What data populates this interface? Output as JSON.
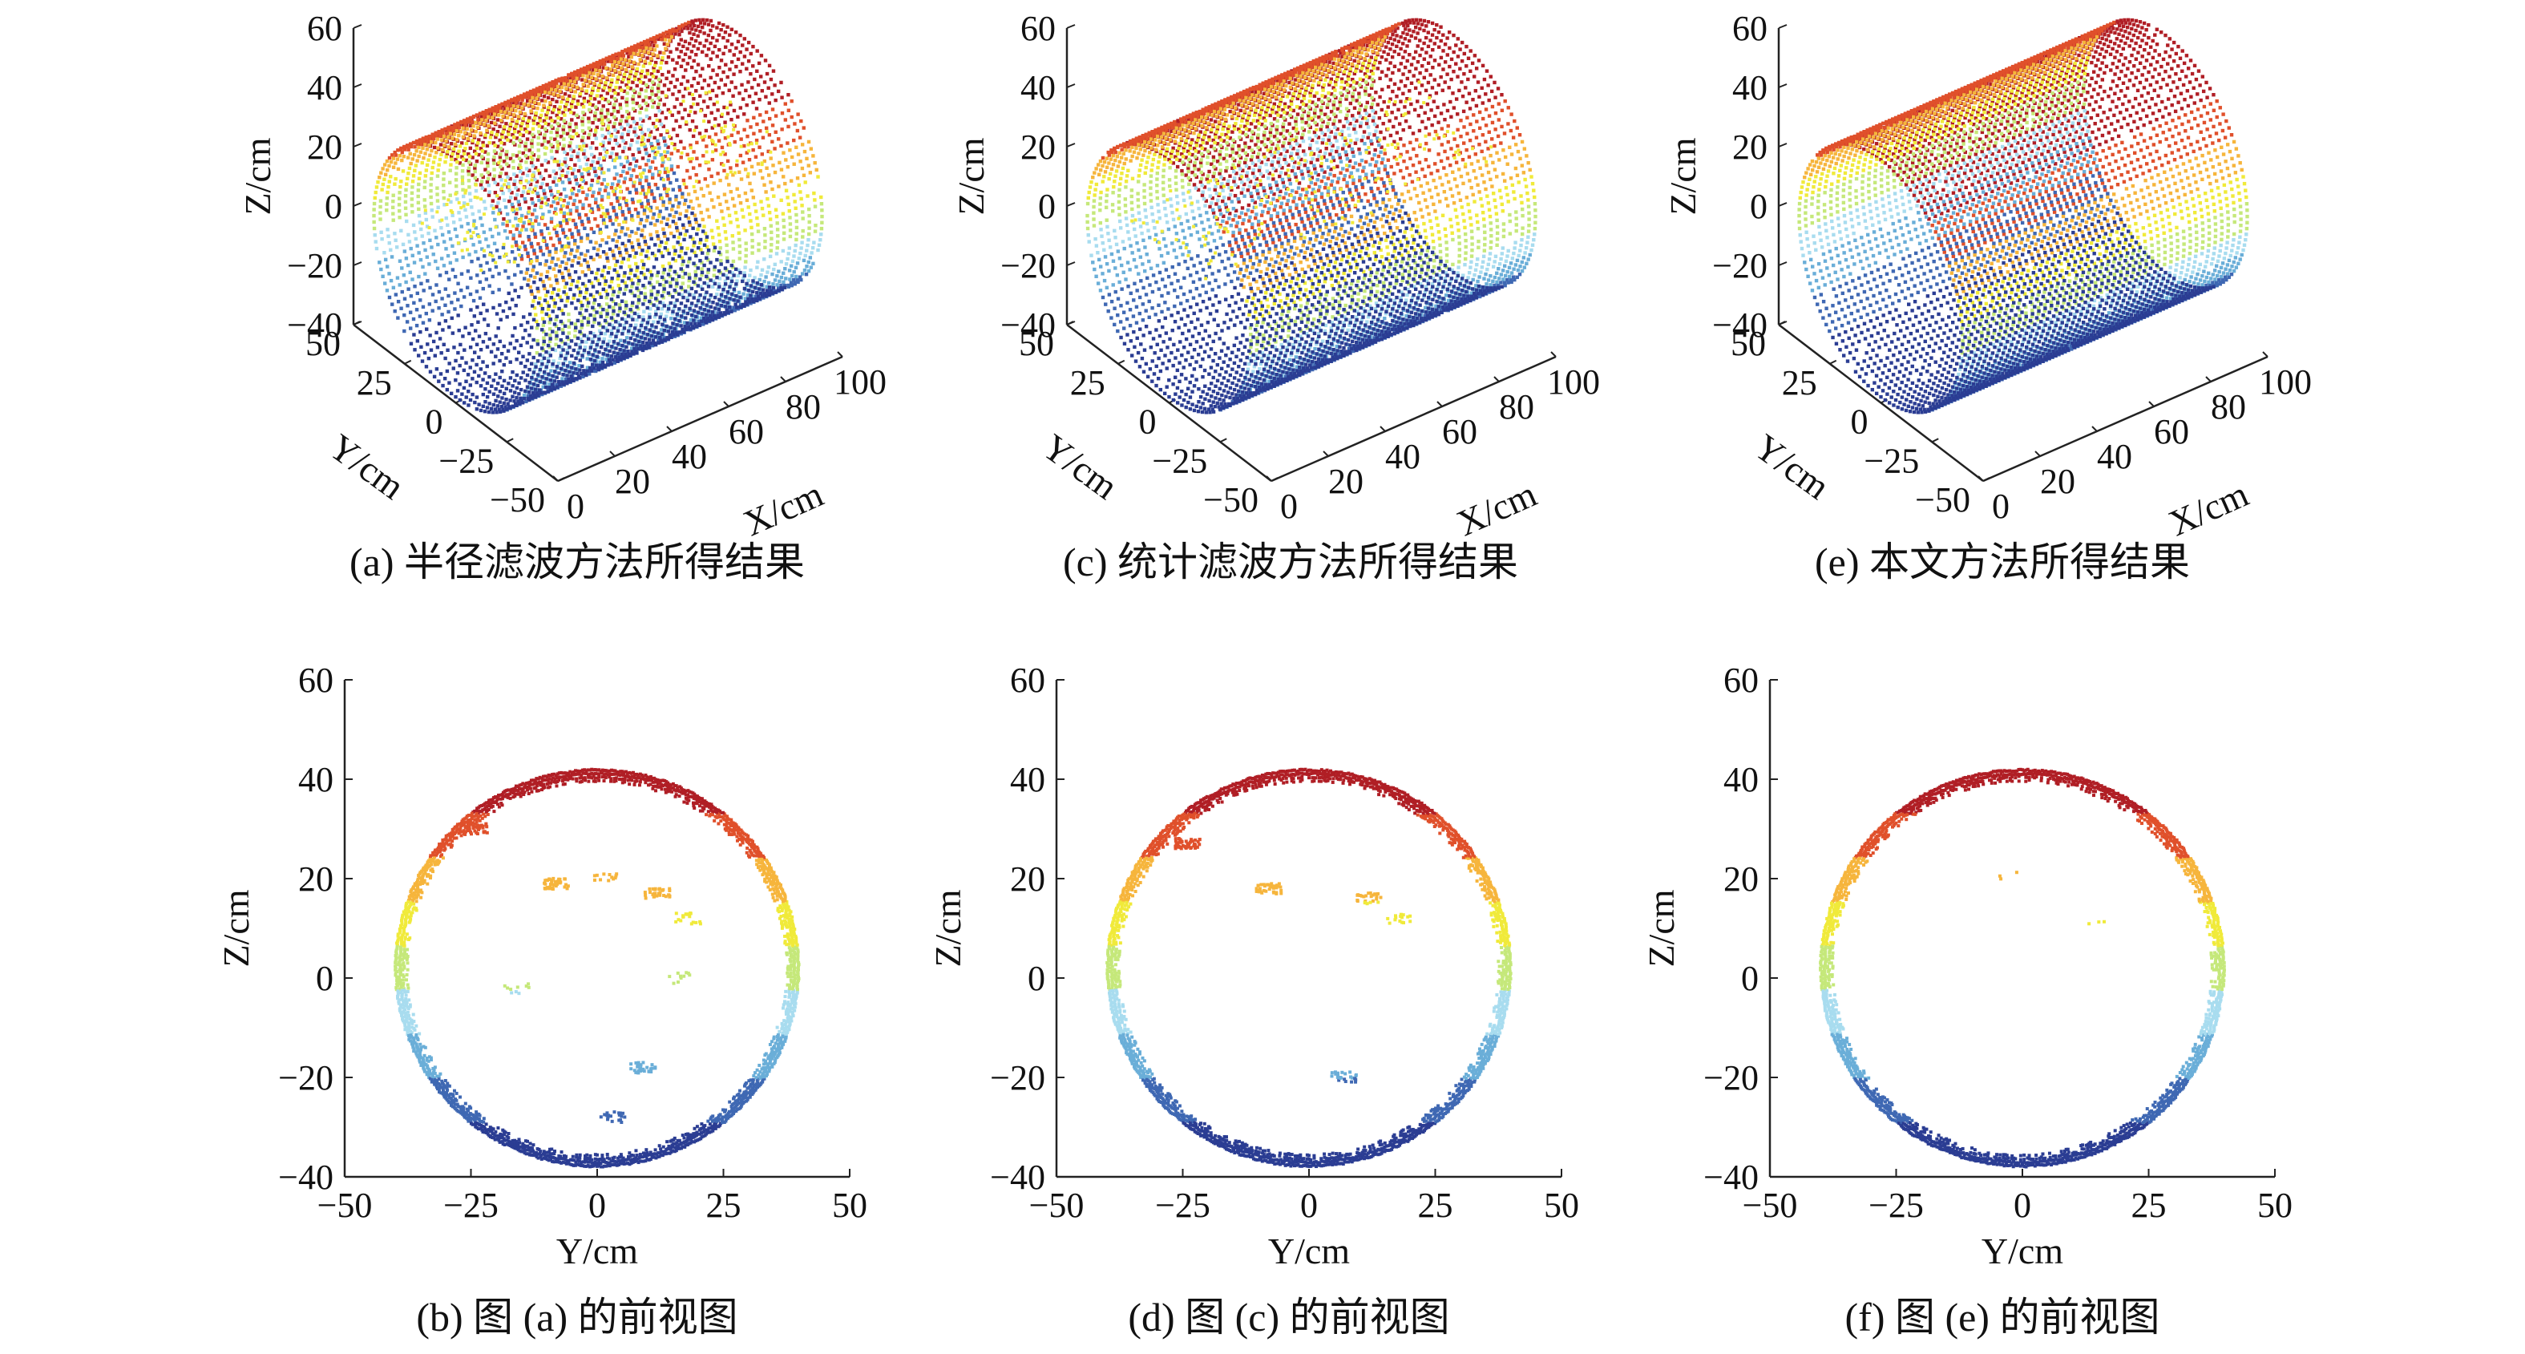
{
  "colors": {
    "colormap": [
      "#2b3d93",
      "#3f68b3",
      "#6aaed8",
      "#a8dcef",
      "#c5e87a",
      "#f0ea3a",
      "#f6b53c",
      "#e0502b",
      "#b01e25"
    ]
  },
  "chart_data": [
    {
      "id": "a",
      "type": "scatter3d",
      "caption": "(a) 半径滤波方法所得结果",
      "xlabel": "X/cm",
      "ylabel": "Y/cm",
      "zlabel": "Z/cm",
      "xticks": [
        "0",
        "20",
        "40",
        "60",
        "80",
        "100"
      ],
      "yticks": [
        "50",
        "25",
        "0",
        "−25",
        "−50"
      ],
      "zticks": [
        "60",
        "40",
        "20",
        "0",
        "−20",
        "−40"
      ],
      "xlim": [
        0,
        100
      ],
      "ylim": [
        -50,
        50
      ],
      "zlim": [
        -40,
        60
      ],
      "cylinder": {
        "radius": 40,
        "center_z": 2,
        "x_range": [
          0,
          100
        ]
      },
      "noise": "high"
    },
    {
      "id": "c",
      "type": "scatter3d",
      "caption": "(c) 统计滤波方法所得结果",
      "xlabel": "X/cm",
      "ylabel": "Y/cm",
      "zlabel": "Z/cm",
      "xticks": [
        "0",
        "20",
        "40",
        "60",
        "80",
        "100"
      ],
      "yticks": [
        "50",
        "25",
        "0",
        "−25",
        "−50"
      ],
      "zticks": [
        "60",
        "40",
        "20",
        "0",
        "−20",
        "−40"
      ],
      "xlim": [
        0,
        100
      ],
      "ylim": [
        -50,
        50
      ],
      "zlim": [
        -40,
        60
      ],
      "cylinder": {
        "radius": 40,
        "center_z": 2,
        "x_range": [
          0,
          100
        ]
      },
      "noise": "medium"
    },
    {
      "id": "e",
      "type": "scatter3d",
      "caption": "(e) 本文方法所得结果",
      "xlabel": "X/cm",
      "ylabel": "Y/cm",
      "zlabel": "Z/cm",
      "xticks": [
        "0",
        "20",
        "40",
        "60",
        "80",
        "100"
      ],
      "yticks": [
        "50",
        "25",
        "0",
        "−25",
        "−50"
      ],
      "zticks": [
        "60",
        "40",
        "20",
        "0",
        "−20",
        "−40"
      ],
      "xlim": [
        0,
        100
      ],
      "ylim": [
        -50,
        50
      ],
      "zlim": [
        -40,
        60
      ],
      "cylinder": {
        "radius": 40,
        "center_z": 2,
        "x_range": [
          0,
          100
        ]
      },
      "noise": "low"
    },
    {
      "id": "b",
      "type": "scatter",
      "caption": "(b) 图 (a) 的前视图",
      "xlabel": "Y/cm",
      "ylabel": "Z/cm",
      "xticks": [
        "−50",
        "−25",
        "0",
        "25",
        "50"
      ],
      "yticks": [
        "60",
        "40",
        "20",
        "0",
        "−20",
        "−40"
      ],
      "xlim": [
        -50,
        50
      ],
      "ylim": [
        -40,
        60
      ],
      "circle": {
        "center": [
          0,
          2
        ],
        "radius": 40
      },
      "noise_clusters": [
        {
          "y": -8,
          "z": 19,
          "count": 40
        },
        {
          "y": 2,
          "z": 20,
          "count": 12
        },
        {
          "y": 12,
          "z": 17,
          "count": 30
        },
        {
          "y": 18,
          "z": 12,
          "count": 18
        },
        {
          "y": 16,
          "z": 0,
          "count": 10
        },
        {
          "y": -16,
          "z": -2,
          "count": 10
        },
        {
          "y": 9,
          "z": -18,
          "count": 30
        },
        {
          "y": 3,
          "z": -28,
          "count": 20
        },
        {
          "y": -24,
          "z": 30,
          "count": 40
        }
      ]
    },
    {
      "id": "d",
      "type": "scatter",
      "caption": "(d) 图 (c) 的前视图",
      "xlabel": "Y/cm",
      "ylabel": "Z/cm",
      "xticks": [
        "−50",
        "−25",
        "0",
        "25",
        "50"
      ],
      "yticks": [
        "60",
        "40",
        "20",
        "0",
        "−20",
        "−40"
      ],
      "xlim": [
        -50,
        50
      ],
      "ylim": [
        -40,
        60
      ],
      "circle": {
        "center": [
          0,
          2
        ],
        "radius": 40
      },
      "noise_clusters": [
        {
          "y": -8,
          "z": 18,
          "count": 35
        },
        {
          "y": 12,
          "z": 16,
          "count": 25
        },
        {
          "y": 18,
          "z": 12,
          "count": 15
        },
        {
          "y": 7,
          "z": -20,
          "count": 25
        },
        {
          "y": -24,
          "z": 27,
          "count": 45
        }
      ]
    },
    {
      "id": "f",
      "type": "scatter",
      "caption": "(f) 图 (e) 的前视图",
      "xlabel": "Y/cm",
      "ylabel": "Z/cm",
      "xticks": [
        "−50",
        "−25",
        "0",
        "25",
        "50"
      ],
      "yticks": [
        "60",
        "40",
        "20",
        "0",
        "−20",
        "−40"
      ],
      "xlim": [
        -50,
        50
      ],
      "ylim": [
        -40,
        60
      ],
      "circle": {
        "center": [
          0,
          2
        ],
        "radius": 40
      },
      "noise_clusters": [
        {
          "y": -3,
          "z": 21,
          "count": 3
        },
        {
          "y": 14,
          "z": 12,
          "count": 3
        }
      ]
    }
  ]
}
